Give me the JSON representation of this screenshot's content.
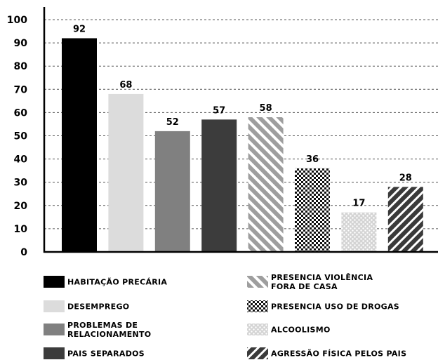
{
  "chart_data": {
    "type": "bar",
    "yticks": [
      "0",
      "10",
      "20",
      "30",
      "40",
      "50",
      "60",
      "70",
      "80",
      "90",
      "100"
    ],
    "ylim": [
      0,
      100
    ],
    "grid": "dashed",
    "legend_position": "bottom",
    "categories": [
      {
        "label_lines": [
          "HABITAÇÃO PRECÁRIA"
        ],
        "value": 92,
        "fill": "solid",
        "color": "#000000"
      },
      {
        "label_lines": [
          "DESEMPREGO"
        ],
        "value": 68,
        "fill": "solid",
        "color": "#dcdcdc"
      },
      {
        "label_lines": [
          "PROBLEMAS DE",
          "RELACIONAMENTO"
        ],
        "value": 52,
        "fill": "solid",
        "color": "#808080"
      },
      {
        "label_lines": [
          "PAIS SEPARADOS"
        ],
        "value": 57,
        "fill": "solid",
        "color": "#3c3c3c"
      },
      {
        "label_lines": [
          "PRESENCIA VIOLÊNCIA",
          "FORA DE CASA"
        ],
        "value": 58,
        "fill": "diagonal-stripes",
        "color": "#9e9e9e"
      },
      {
        "label_lines": [
          "PRESENCIA USO DE DROGAS"
        ],
        "value": 36,
        "fill": "checker",
        "color": "#111111"
      },
      {
        "label_lines": [
          "ALCOOLISMO"
        ],
        "value": 17,
        "fill": "dots",
        "color": "#c4c4c4"
      },
      {
        "label_lines": [
          "AGRESSÃO FÍSICA PELOS PAIS"
        ],
        "value": 28,
        "fill": "stripes-dark",
        "color": "#3a3a3a"
      }
    ]
  }
}
